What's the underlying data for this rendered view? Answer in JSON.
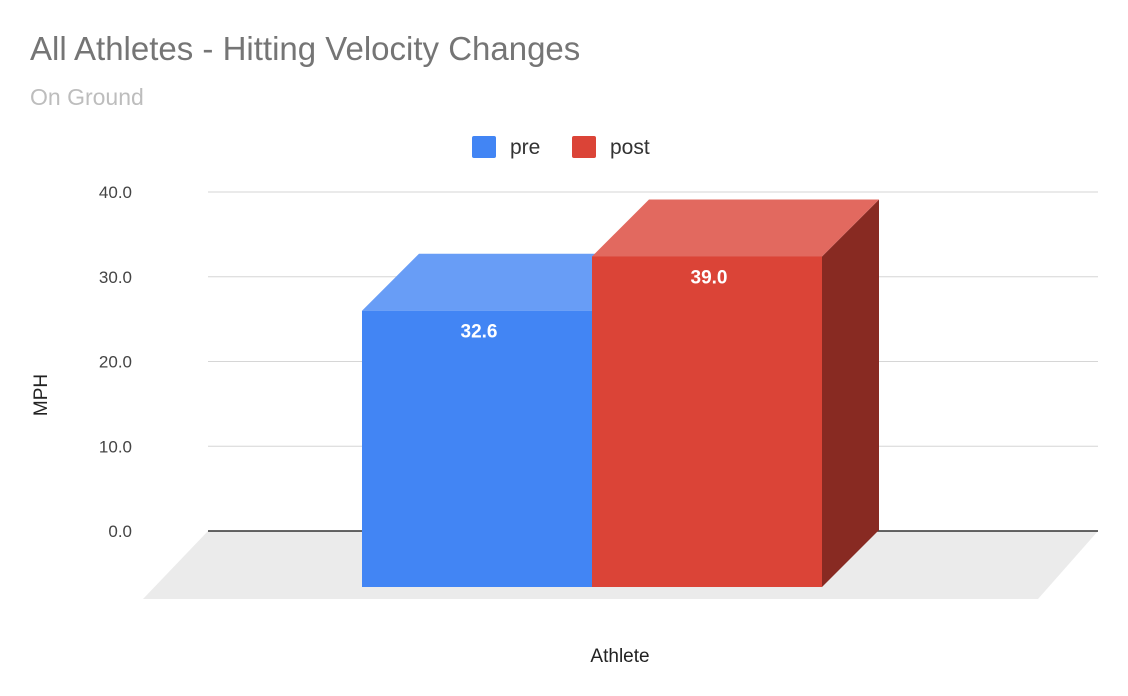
{
  "chart_data": {
    "type": "bar",
    "title": "All Athletes - Hitting Velocity Changes",
    "subtitle": "On Ground",
    "categories": [
      ""
    ],
    "series": [
      {
        "name": "pre",
        "values": [
          32.6
        ],
        "color": "#4285f4",
        "label": "32.6"
      },
      {
        "name": "post",
        "values": [
          39.0
        ],
        "color": "#db4437",
        "label": "39.0"
      }
    ],
    "xlabel": "Athlete",
    "ylabel": "MPH",
    "ylim": [
      0,
      40
    ],
    "yticks": [
      "0.0",
      "10.0",
      "20.0",
      "30.0",
      "40.0"
    ],
    "grid": true,
    "legend_position": "top",
    "style": "3d"
  }
}
